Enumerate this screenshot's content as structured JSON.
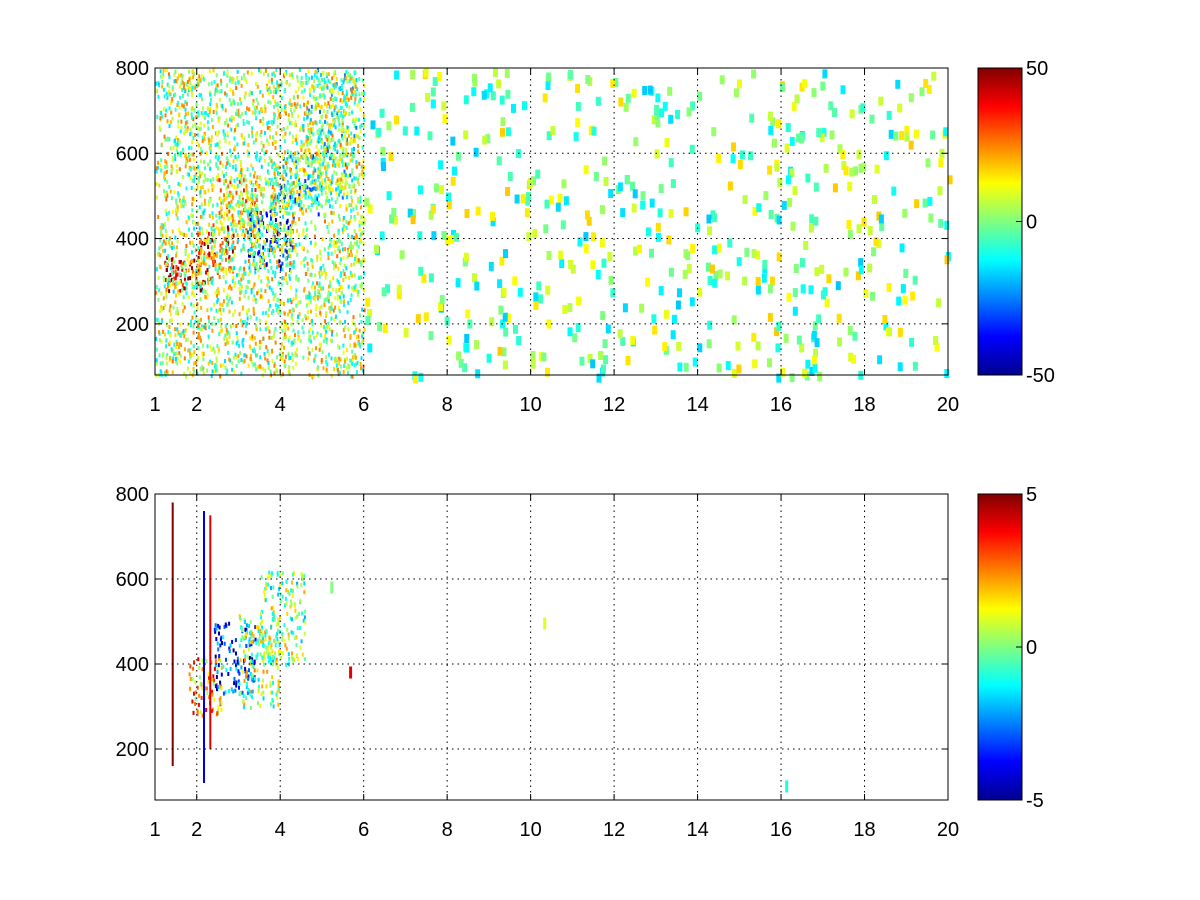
{
  "chart_data": [
    {
      "type": "heatmap",
      "title": "",
      "xlabel": "",
      "ylabel": "",
      "xlim": [
        1,
        20
      ],
      "ylim": [
        80,
        800
      ],
      "xticks": [
        1,
        2,
        4,
        6,
        8,
        10,
        12,
        14,
        16,
        18,
        20
      ],
      "xtick_labels": [
        "1",
        "2",
        "4",
        "6",
        "8",
        "10",
        "12",
        "14",
        "16",
        "18",
        "20"
      ],
      "yticks": [
        200,
        400,
        600,
        800
      ],
      "ytick_labels": [
        "200",
        "400",
        "600",
        "800"
      ],
      "grid": true,
      "colormap": "jet",
      "clim": [
        -50,
        50
      ],
      "colorbar_ticks": [
        -50,
        0,
        50
      ],
      "colorbar_labels": [
        "-50",
        "0",
        "50"
      ],
      "regions": [
        {
          "x": [
            1.2,
            2.4
          ],
          "y": [
            280,
            360
          ],
          "value": 38
        },
        {
          "x": [
            2.0,
            2.9
          ],
          "y": [
            320,
            440
          ],
          "value": 30
        },
        {
          "x": [
            2.5,
            3.5
          ],
          "y": [
            420,
            560
          ],
          "value": 15
        },
        {
          "x": [
            3.2,
            4.3
          ],
          "y": [
            330,
            470
          ],
          "value": -28
        },
        {
          "x": [
            3.8,
            4.9
          ],
          "y": [
            460,
            600
          ],
          "value": -15
        },
        {
          "x": [
            4.6,
            5.8
          ],
          "y": [
            500,
            800
          ],
          "value": -5
        },
        {
          "x": [
            1.0,
            6.0
          ],
          "y": [
            80,
            800
          ],
          "value": 5
        },
        {
          "x": [
            6.0,
            20.0
          ],
          "y": [
            80,
            800
          ],
          "value": 0
        }
      ]
    },
    {
      "type": "heatmap",
      "title": "",
      "xlabel": "",
      "ylabel": "",
      "xlim": [
        1,
        20
      ],
      "ylim": [
        80,
        800
      ],
      "xticks": [
        1,
        2,
        4,
        6,
        8,
        10,
        12,
        14,
        16,
        18,
        20
      ],
      "xtick_labels": [
        "1",
        "2",
        "4",
        "6",
        "8",
        "10",
        "12",
        "14",
        "16",
        "18",
        "20"
      ],
      "yticks": [
        200,
        400,
        600,
        800
      ],
      "ytick_labels": [
        "200",
        "400",
        "600",
        "800"
      ],
      "grid": true,
      "colormap": "jet",
      "clim": [
        -5,
        5
      ],
      "colorbar_ticks": [
        -5,
        0,
        5
      ],
      "colorbar_labels": [
        "-5",
        "0",
        "5"
      ],
      "regions": [
        {
          "x": [
            1.8,
            2.6
          ],
          "y": [
            280,
            420
          ],
          "value": 2
        },
        {
          "x": [
            2.4,
            3.4
          ],
          "y": [
            330,
            500
          ],
          "value": -3
        },
        {
          "x": [
            3.0,
            4.0
          ],
          "y": [
            300,
            520
          ],
          "value": 0.5
        },
        {
          "x": [
            3.5,
            4.6
          ],
          "y": [
            400,
            620
          ],
          "value": 0
        }
      ],
      "lines": [
        {
          "x": 1.4,
          "y": [
            160,
            780
          ],
          "value": 5
        },
        {
          "x": 2.15,
          "y": [
            120,
            760
          ],
          "value": -4
        },
        {
          "x": 2.3,
          "y": [
            200,
            750
          ],
          "value": 4
        }
      ],
      "points": [
        {
          "x": 5.65,
          "y": 380,
          "value": 4
        },
        {
          "x": 5.2,
          "y": 580,
          "value": 0
        },
        {
          "x": 10.3,
          "y": 495,
          "value": 1
        },
        {
          "x": 16.1,
          "y": 112,
          "value": -1
        }
      ]
    }
  ]
}
